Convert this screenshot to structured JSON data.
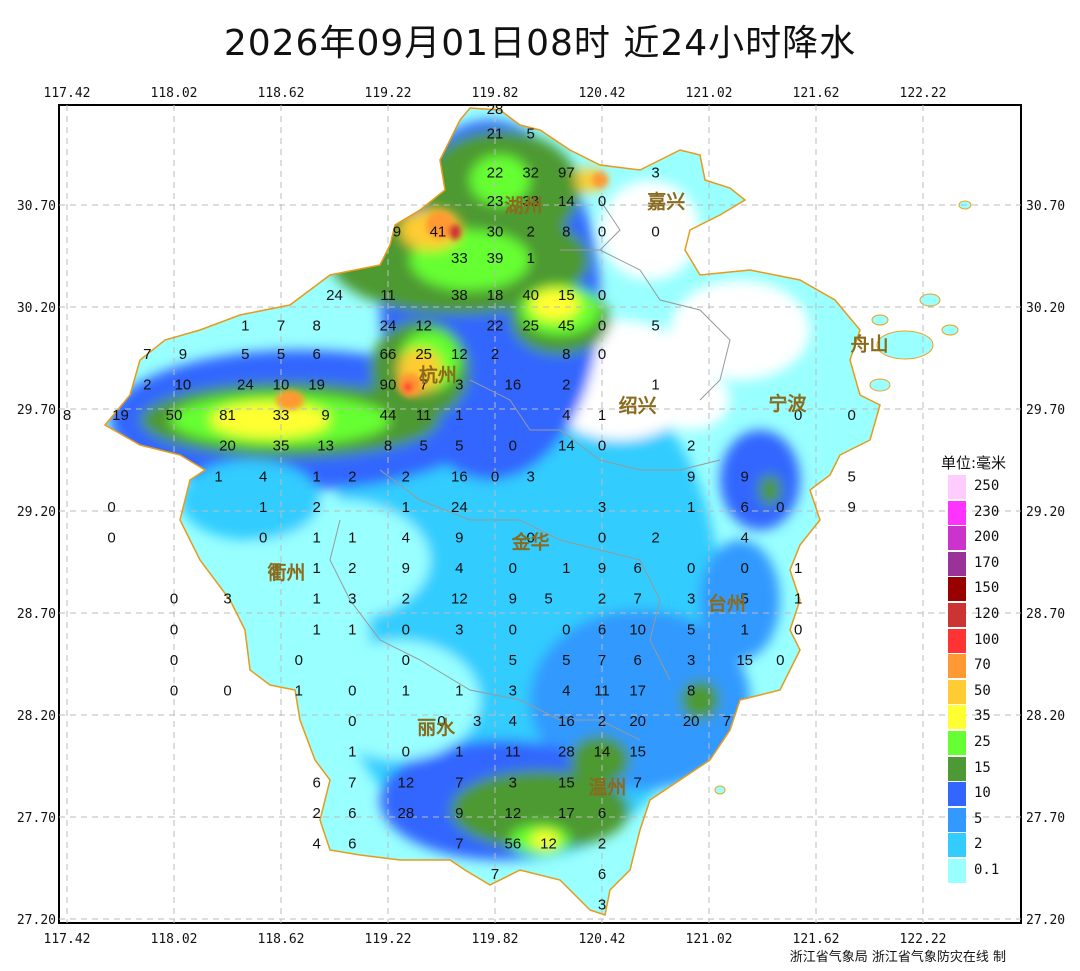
{
  "title": "2026年09月01日08时  近24小时降水",
  "credit": "浙江省气象局 浙江省气象防灾在线 制",
  "map": {
    "lon_ticks": [
      "117.42",
      "118.02",
      "118.62",
      "119.22",
      "119.82",
      "120.42",
      "121.02",
      "121.62",
      "122.22"
    ],
    "lat_ticks": [
      "30.70",
      "30.20",
      "29.70",
      "29.20",
      "28.70",
      "28.20",
      "27.70",
      "27.20"
    ],
    "cities": [
      {
        "name": "湖州",
        "lon": 119.98,
        "lat": 30.7
      },
      {
        "name": "嘉兴",
        "lon": 120.78,
        "lat": 30.72
      },
      {
        "name": "杭州",
        "lon": 119.5,
        "lat": 29.87
      },
      {
        "name": "绍兴",
        "lon": 120.62,
        "lat": 29.72
      },
      {
        "name": "宁波",
        "lon": 121.46,
        "lat": 29.73
      },
      {
        "name": "舟山",
        "lon": 121.92,
        "lat": 30.02
      },
      {
        "name": "金华",
        "lon": 120.02,
        "lat": 29.05
      },
      {
        "name": "衢州",
        "lon": 118.65,
        "lat": 28.9
      },
      {
        "name": "台州",
        "lon": 121.12,
        "lat": 28.75
      },
      {
        "name": "丽水",
        "lon": 119.49,
        "lat": 28.14
      },
      {
        "name": "温州",
        "lon": 120.45,
        "lat": 27.85
      }
    ],
    "stations": [
      {
        "v": "28",
        "lon": 119.82,
        "lat": 31.17
      },
      {
        "v": "21",
        "lon": 119.82,
        "lat": 31.05
      },
      {
        "v": "5",
        "lon": 120.02,
        "lat": 31.05
      },
      {
        "v": "22",
        "lon": 119.82,
        "lat": 30.86
      },
      {
        "v": "32",
        "lon": 120.02,
        "lat": 30.86
      },
      {
        "v": "97",
        "lon": 120.22,
        "lat": 30.86
      },
      {
        "v": "3",
        "lon": 120.72,
        "lat": 30.86
      },
      {
        "v": "23",
        "lon": 119.82,
        "lat": 30.72
      },
      {
        "v": "33",
        "lon": 120.02,
        "lat": 30.72
      },
      {
        "v": "14",
        "lon": 120.22,
        "lat": 30.72
      },
      {
        "v": "0",
        "lon": 120.42,
        "lat": 30.72
      },
      {
        "v": "9",
        "lon": 119.27,
        "lat": 30.57
      },
      {
        "v": "41",
        "lon": 119.5,
        "lat": 30.57
      },
      {
        "v": "30",
        "lon": 119.82,
        "lat": 30.57
      },
      {
        "v": "2",
        "lon": 120.02,
        "lat": 30.57
      },
      {
        "v": "8",
        "lon": 120.22,
        "lat": 30.57
      },
      {
        "v": "0",
        "lon": 120.42,
        "lat": 30.57
      },
      {
        "v": "0",
        "lon": 120.72,
        "lat": 30.57
      },
      {
        "v": "33",
        "lon": 119.62,
        "lat": 30.44
      },
      {
        "v": "39",
        "lon": 119.82,
        "lat": 30.44
      },
      {
        "v": "1",
        "lon": 120.02,
        "lat": 30.44
      },
      {
        "v": "24",
        "lon": 118.92,
        "lat": 30.26
      },
      {
        "v": "11",
        "lon": 119.22,
        "lat": 30.26
      },
      {
        "v": "38",
        "lon": 119.62,
        "lat": 30.26
      },
      {
        "v": "18",
        "lon": 119.82,
        "lat": 30.26
      },
      {
        "v": "40",
        "lon": 120.02,
        "lat": 30.26
      },
      {
        "v": "15",
        "lon": 120.22,
        "lat": 30.26
      },
      {
        "v": "0",
        "lon": 120.42,
        "lat": 30.26
      },
      {
        "v": "1",
        "lon": 118.42,
        "lat": 30.11
      },
      {
        "v": "7",
        "lon": 118.62,
        "lat": 30.11
      },
      {
        "v": "8",
        "lon": 118.82,
        "lat": 30.11
      },
      {
        "v": "24",
        "lon": 119.22,
        "lat": 30.11
      },
      {
        "v": "12",
        "lon": 119.42,
        "lat": 30.11
      },
      {
        "v": "22",
        "lon": 119.82,
        "lat": 30.11
      },
      {
        "v": "25",
        "lon": 120.02,
        "lat": 30.11
      },
      {
        "v": "45",
        "lon": 120.22,
        "lat": 30.11
      },
      {
        "v": "0",
        "lon": 120.42,
        "lat": 30.11
      },
      {
        "v": "5",
        "lon": 120.72,
        "lat": 30.11
      },
      {
        "v": "7",
        "lon": 117.87,
        "lat": 29.97
      },
      {
        "v": "9",
        "lon": 118.07,
        "lat": 29.97
      },
      {
        "v": "5",
        "lon": 118.42,
        "lat": 29.97
      },
      {
        "v": "5",
        "lon": 118.62,
        "lat": 29.97
      },
      {
        "v": "6",
        "lon": 118.82,
        "lat": 29.97
      },
      {
        "v": "66",
        "lon": 119.22,
        "lat": 29.97
      },
      {
        "v": "25",
        "lon": 119.42,
        "lat": 29.97
      },
      {
        "v": "12",
        "lon": 119.62,
        "lat": 29.97
      },
      {
        "v": "2",
        "lon": 119.82,
        "lat": 29.97
      },
      {
        "v": "8",
        "lon": 120.22,
        "lat": 29.97
      },
      {
        "v": "0",
        "lon": 120.42,
        "lat": 29.97
      },
      {
        "v": "2",
        "lon": 117.87,
        "lat": 29.82
      },
      {
        "v": "10",
        "lon": 118.07,
        "lat": 29.82
      },
      {
        "v": "24",
        "lon": 118.42,
        "lat": 29.82
      },
      {
        "v": "10",
        "lon": 118.62,
        "lat": 29.82
      },
      {
        "v": "19",
        "lon": 118.82,
        "lat": 29.82
      },
      {
        "v": "90",
        "lon": 119.22,
        "lat": 29.82
      },
      {
        "v": "7",
        "lon": 119.42,
        "lat": 29.82
      },
      {
        "v": "3",
        "lon": 119.62,
        "lat": 29.82
      },
      {
        "v": "16",
        "lon": 119.92,
        "lat": 29.82
      },
      {
        "v": "2",
        "lon": 120.22,
        "lat": 29.82
      },
      {
        "v": "1",
        "lon": 120.72,
        "lat": 29.82
      },
      {
        "v": "8",
        "lon": 117.42,
        "lat": 29.67
      },
      {
        "v": "19",
        "lon": 117.72,
        "lat": 29.67
      },
      {
        "v": "50",
        "lon": 118.02,
        "lat": 29.67
      },
      {
        "v": "81",
        "lon": 118.32,
        "lat": 29.67
      },
      {
        "v": "33",
        "lon": 118.62,
        "lat": 29.67
      },
      {
        "v": "9",
        "lon": 118.87,
        "lat": 29.67
      },
      {
        "v": "44",
        "lon": 119.22,
        "lat": 29.67
      },
      {
        "v": "11",
        "lon": 119.42,
        "lat": 29.67
      },
      {
        "v": "1",
        "lon": 119.62,
        "lat": 29.67
      },
      {
        "v": "4",
        "lon": 120.22,
        "lat": 29.67
      },
      {
        "v": "1",
        "lon": 120.42,
        "lat": 29.67
      },
      {
        "v": "0",
        "lon": 121.52,
        "lat": 29.67
      },
      {
        "v": "0",
        "lon": 121.82,
        "lat": 29.67
      },
      {
        "v": "20",
        "lon": 118.32,
        "lat": 29.52
      },
      {
        "v": "35",
        "lon": 118.62,
        "lat": 29.52
      },
      {
        "v": "13",
        "lon": 118.87,
        "lat": 29.52
      },
      {
        "v": "8",
        "lon": 119.22,
        "lat": 29.52
      },
      {
        "v": "5",
        "lon": 119.42,
        "lat": 29.52
      },
      {
        "v": "5",
        "lon": 119.62,
        "lat": 29.52
      },
      {
        "v": "0",
        "lon": 119.92,
        "lat": 29.52
      },
      {
        "v": "14",
        "lon": 120.22,
        "lat": 29.52
      },
      {
        "v": "0",
        "lon": 120.42,
        "lat": 29.52
      },
      {
        "v": "2",
        "lon": 120.92,
        "lat": 29.52
      },
      {
        "v": "1",
        "lon": 118.27,
        "lat": 29.37
      },
      {
        "v": "4",
        "lon": 118.52,
        "lat": 29.37
      },
      {
        "v": "1",
        "lon": 118.82,
        "lat": 29.37
      },
      {
        "v": "2",
        "lon": 119.02,
        "lat": 29.37
      },
      {
        "v": "2",
        "lon": 119.32,
        "lat": 29.37
      },
      {
        "v": "16",
        "lon": 119.62,
        "lat": 29.37
      },
      {
        "v": "0",
        "lon": 119.82,
        "lat": 29.37
      },
      {
        "v": "3",
        "lon": 120.02,
        "lat": 29.37
      },
      {
        "v": "9",
        "lon": 120.92,
        "lat": 29.37
      },
      {
        "v": "9",
        "lon": 121.22,
        "lat": 29.37
      },
      {
        "v": "5",
        "lon": 121.82,
        "lat": 29.37
      },
      {
        "v": "0",
        "lon": 117.67,
        "lat": 29.22
      },
      {
        "v": "1",
        "lon": 118.52,
        "lat": 29.22
      },
      {
        "v": "2",
        "lon": 118.82,
        "lat": 29.22
      },
      {
        "v": "1",
        "lon": 119.32,
        "lat": 29.22
      },
      {
        "v": "24",
        "lon": 119.62,
        "lat": 29.22
      },
      {
        "v": "3",
        "lon": 120.42,
        "lat": 29.22
      },
      {
        "v": "1",
        "lon": 120.92,
        "lat": 29.22
      },
      {
        "v": "6",
        "lon": 121.22,
        "lat": 29.22
      },
      {
        "v": "0",
        "lon": 121.42,
        "lat": 29.22
      },
      {
        "v": "9",
        "lon": 121.82,
        "lat": 29.22
      },
      {
        "v": "0",
        "lon": 117.67,
        "lat": 29.07
      },
      {
        "v": "0",
        "lon": 118.52,
        "lat": 29.07
      },
      {
        "v": "1",
        "lon": 118.82,
        "lat": 29.07
      },
      {
        "v": "1",
        "lon": 119.02,
        "lat": 29.07
      },
      {
        "v": "4",
        "lon": 119.32,
        "lat": 29.07
      },
      {
        "v": "9",
        "lon": 119.62,
        "lat": 29.07
      },
      {
        "v": "0",
        "lon": 120.02,
        "lat": 29.07
      },
      {
        "v": "0",
        "lon": 120.42,
        "lat": 29.07
      },
      {
        "v": "2",
        "lon": 120.72,
        "lat": 29.07
      },
      {
        "v": "4",
        "lon": 121.22,
        "lat": 29.07
      },
      {
        "v": "1",
        "lon": 118.82,
        "lat": 28.92
      },
      {
        "v": "2",
        "lon": 119.02,
        "lat": 28.92
      },
      {
        "v": "9",
        "lon": 119.32,
        "lat": 28.92
      },
      {
        "v": "4",
        "lon": 119.62,
        "lat": 28.92
      },
      {
        "v": "0",
        "lon": 119.92,
        "lat": 28.92
      },
      {
        "v": "1",
        "lon": 120.22,
        "lat": 28.92
      },
      {
        "v": "9",
        "lon": 120.42,
        "lat": 28.92
      },
      {
        "v": "6",
        "lon": 120.62,
        "lat": 28.92
      },
      {
        "v": "0",
        "lon": 120.92,
        "lat": 28.92
      },
      {
        "v": "0",
        "lon": 121.22,
        "lat": 28.92
      },
      {
        "v": "1",
        "lon": 121.52,
        "lat": 28.92
      },
      {
        "v": "0",
        "lon": 118.02,
        "lat": 28.77
      },
      {
        "v": "3",
        "lon": 118.32,
        "lat": 28.77
      },
      {
        "v": "1",
        "lon": 118.82,
        "lat": 28.77
      },
      {
        "v": "3",
        "lon": 119.02,
        "lat": 28.77
      },
      {
        "v": "2",
        "lon": 119.32,
        "lat": 28.77
      },
      {
        "v": "12",
        "lon": 119.62,
        "lat": 28.77
      },
      {
        "v": "9",
        "lon": 119.92,
        "lat": 28.77
      },
      {
        "v": "5",
        "lon": 120.12,
        "lat": 28.77
      },
      {
        "v": "2",
        "lon": 120.42,
        "lat": 28.77
      },
      {
        "v": "7",
        "lon": 120.62,
        "lat": 28.77
      },
      {
        "v": "3",
        "lon": 120.92,
        "lat": 28.77
      },
      {
        "v": "5",
        "lon": 121.22,
        "lat": 28.77
      },
      {
        "v": "1",
        "lon": 121.52,
        "lat": 28.77
      },
      {
        "v": "0",
        "lon": 118.02,
        "lat": 28.62
      },
      {
        "v": "1",
        "lon": 118.82,
        "lat": 28.62
      },
      {
        "v": "1",
        "lon": 119.02,
        "lat": 28.62
      },
      {
        "v": "0",
        "lon": 119.32,
        "lat": 28.62
      },
      {
        "v": "3",
        "lon": 119.62,
        "lat": 28.62
      },
      {
        "v": "0",
        "lon": 119.92,
        "lat": 28.62
      },
      {
        "v": "0",
        "lon": 120.22,
        "lat": 28.62
      },
      {
        "v": "6",
        "lon": 120.42,
        "lat": 28.62
      },
      {
        "v": "10",
        "lon": 120.62,
        "lat": 28.62
      },
      {
        "v": "5",
        "lon": 120.92,
        "lat": 28.62
      },
      {
        "v": "1",
        "lon": 121.22,
        "lat": 28.62
      },
      {
        "v": "0",
        "lon": 121.52,
        "lat": 28.62
      },
      {
        "v": "0",
        "lon": 118.02,
        "lat": 28.47
      },
      {
        "v": "0",
        "lon": 118.72,
        "lat": 28.47
      },
      {
        "v": "0",
        "lon": 119.32,
        "lat": 28.47
      },
      {
        "v": "5",
        "lon": 119.92,
        "lat": 28.47
      },
      {
        "v": "5",
        "lon": 120.22,
        "lat": 28.47
      },
      {
        "v": "7",
        "lon": 120.42,
        "lat": 28.47
      },
      {
        "v": "6",
        "lon": 120.62,
        "lat": 28.47
      },
      {
        "v": "3",
        "lon": 120.92,
        "lat": 28.47
      },
      {
        "v": "15",
        "lon": 121.22,
        "lat": 28.47
      },
      {
        "v": "0",
        "lon": 121.42,
        "lat": 28.47
      },
      {
        "v": "0",
        "lon": 118.02,
        "lat": 28.32
      },
      {
        "v": "0",
        "lon": 118.32,
        "lat": 28.32
      },
      {
        "v": "1",
        "lon": 118.72,
        "lat": 28.32
      },
      {
        "v": "0",
        "lon": 119.02,
        "lat": 28.32
      },
      {
        "v": "1",
        "lon": 119.32,
        "lat": 28.32
      },
      {
        "v": "1",
        "lon": 119.62,
        "lat": 28.32
      },
      {
        "v": "3",
        "lon": 119.92,
        "lat": 28.32
      },
      {
        "v": "4",
        "lon": 120.22,
        "lat": 28.32
      },
      {
        "v": "11",
        "lon": 120.42,
        "lat": 28.32
      },
      {
        "v": "17",
        "lon": 120.62,
        "lat": 28.32
      },
      {
        "v": "8",
        "lon": 120.92,
        "lat": 28.32
      },
      {
        "v": "0",
        "lon": 119.02,
        "lat": 28.17
      },
      {
        "v": "0",
        "lon": 119.52,
        "lat": 28.17
      },
      {
        "v": "3",
        "lon": 119.72,
        "lat": 28.17
      },
      {
        "v": "4",
        "lon": 119.92,
        "lat": 28.17
      },
      {
        "v": "16",
        "lon": 120.22,
        "lat": 28.17
      },
      {
        "v": "2",
        "lon": 120.42,
        "lat": 28.17
      },
      {
        "v": "20",
        "lon": 120.62,
        "lat": 28.17
      },
      {
        "v": "20",
        "lon": 120.92,
        "lat": 28.17
      },
      {
        "v": "7",
        "lon": 121.12,
        "lat": 28.17
      },
      {
        "v": "1",
        "lon": 119.02,
        "lat": 28.02
      },
      {
        "v": "0",
        "lon": 119.32,
        "lat": 28.02
      },
      {
        "v": "1",
        "lon": 119.62,
        "lat": 28.02
      },
      {
        "v": "11",
        "lon": 119.92,
        "lat": 28.02
      },
      {
        "v": "28",
        "lon": 120.22,
        "lat": 28.02
      },
      {
        "v": "14",
        "lon": 120.42,
        "lat": 28.02
      },
      {
        "v": "15",
        "lon": 120.62,
        "lat": 28.02
      },
      {
        "v": "6",
        "lon": 118.82,
        "lat": 27.87
      },
      {
        "v": "7",
        "lon": 119.02,
        "lat": 27.87
      },
      {
        "v": "12",
        "lon": 119.32,
        "lat": 27.87
      },
      {
        "v": "7",
        "lon": 119.62,
        "lat": 27.87
      },
      {
        "v": "3",
        "lon": 119.92,
        "lat": 27.87
      },
      {
        "v": "15",
        "lon": 120.22,
        "lat": 27.87
      },
      {
        "v": "7",
        "lon": 120.62,
        "lat": 27.87
      },
      {
        "v": "2",
        "lon": 118.82,
        "lat": 27.72
      },
      {
        "v": "6",
        "lon": 119.02,
        "lat": 27.72
      },
      {
        "v": "28",
        "lon": 119.32,
        "lat": 27.72
      },
      {
        "v": "9",
        "lon": 119.62,
        "lat": 27.72
      },
      {
        "v": "12",
        "lon": 119.92,
        "lat": 27.72
      },
      {
        "v": "17",
        "lon": 120.22,
        "lat": 27.72
      },
      {
        "v": "6",
        "lon": 120.42,
        "lat": 27.72
      },
      {
        "v": "4",
        "lon": 118.82,
        "lat": 27.57
      },
      {
        "v": "6",
        "lon": 119.02,
        "lat": 27.57
      },
      {
        "v": "7",
        "lon": 119.62,
        "lat": 27.57
      },
      {
        "v": "56",
        "lon": 119.92,
        "lat": 27.57
      },
      {
        "v": "12",
        "lon": 120.12,
        "lat": 27.57
      },
      {
        "v": "2",
        "lon": 120.42,
        "lat": 27.57
      },
      {
        "v": "7",
        "lon": 119.82,
        "lat": 27.42
      },
      {
        "v": "6",
        "lon": 120.42,
        "lat": 27.42
      },
      {
        "v": "3",
        "lon": 120.42,
        "lat": 27.27
      }
    ]
  },
  "legend": {
    "title": "单位:毫米",
    "items": [
      {
        "label": "250",
        "color": "#ffccff"
      },
      {
        "label": "230",
        "color": "#ff33ff"
      },
      {
        "label": "200",
        "color": "#cc33cc"
      },
      {
        "label": "170",
        "color": "#993399"
      },
      {
        "label": "150",
        "color": "#990000"
      },
      {
        "label": "120",
        "color": "#cc3333"
      },
      {
        "label": "100",
        "color": "#ff3333"
      },
      {
        "label": "70",
        "color": "#ff9933"
      },
      {
        "label": "50",
        "color": "#ffcc33"
      },
      {
        "label": "35",
        "color": "#ffff33"
      },
      {
        "label": "25",
        "color": "#66ff33"
      },
      {
        "label": "15",
        "color": "#4d9933"
      },
      {
        "label": "10",
        "color": "#3366ff"
      },
      {
        "label": "5",
        "color": "#3399ff"
      },
      {
        "label": "2",
        "color": "#33ccff"
      },
      {
        "label": "0.1",
        "color": "#99ffff"
      }
    ]
  }
}
